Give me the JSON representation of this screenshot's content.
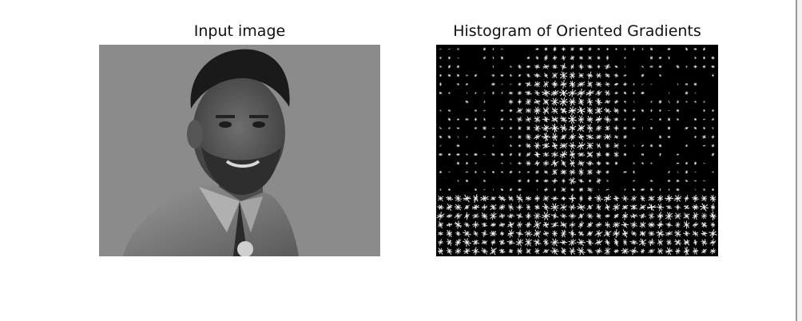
{
  "figure": {
    "left_panel": {
      "title": "Input image"
    },
    "right_panel": {
      "title": "Histogram of Oriented Gradients"
    }
  },
  "colors": {
    "background": "#ffffff",
    "photo_backdrop": "#8a8a8a",
    "hog_background": "#000000",
    "hog_strokes": "#ffffff"
  }
}
